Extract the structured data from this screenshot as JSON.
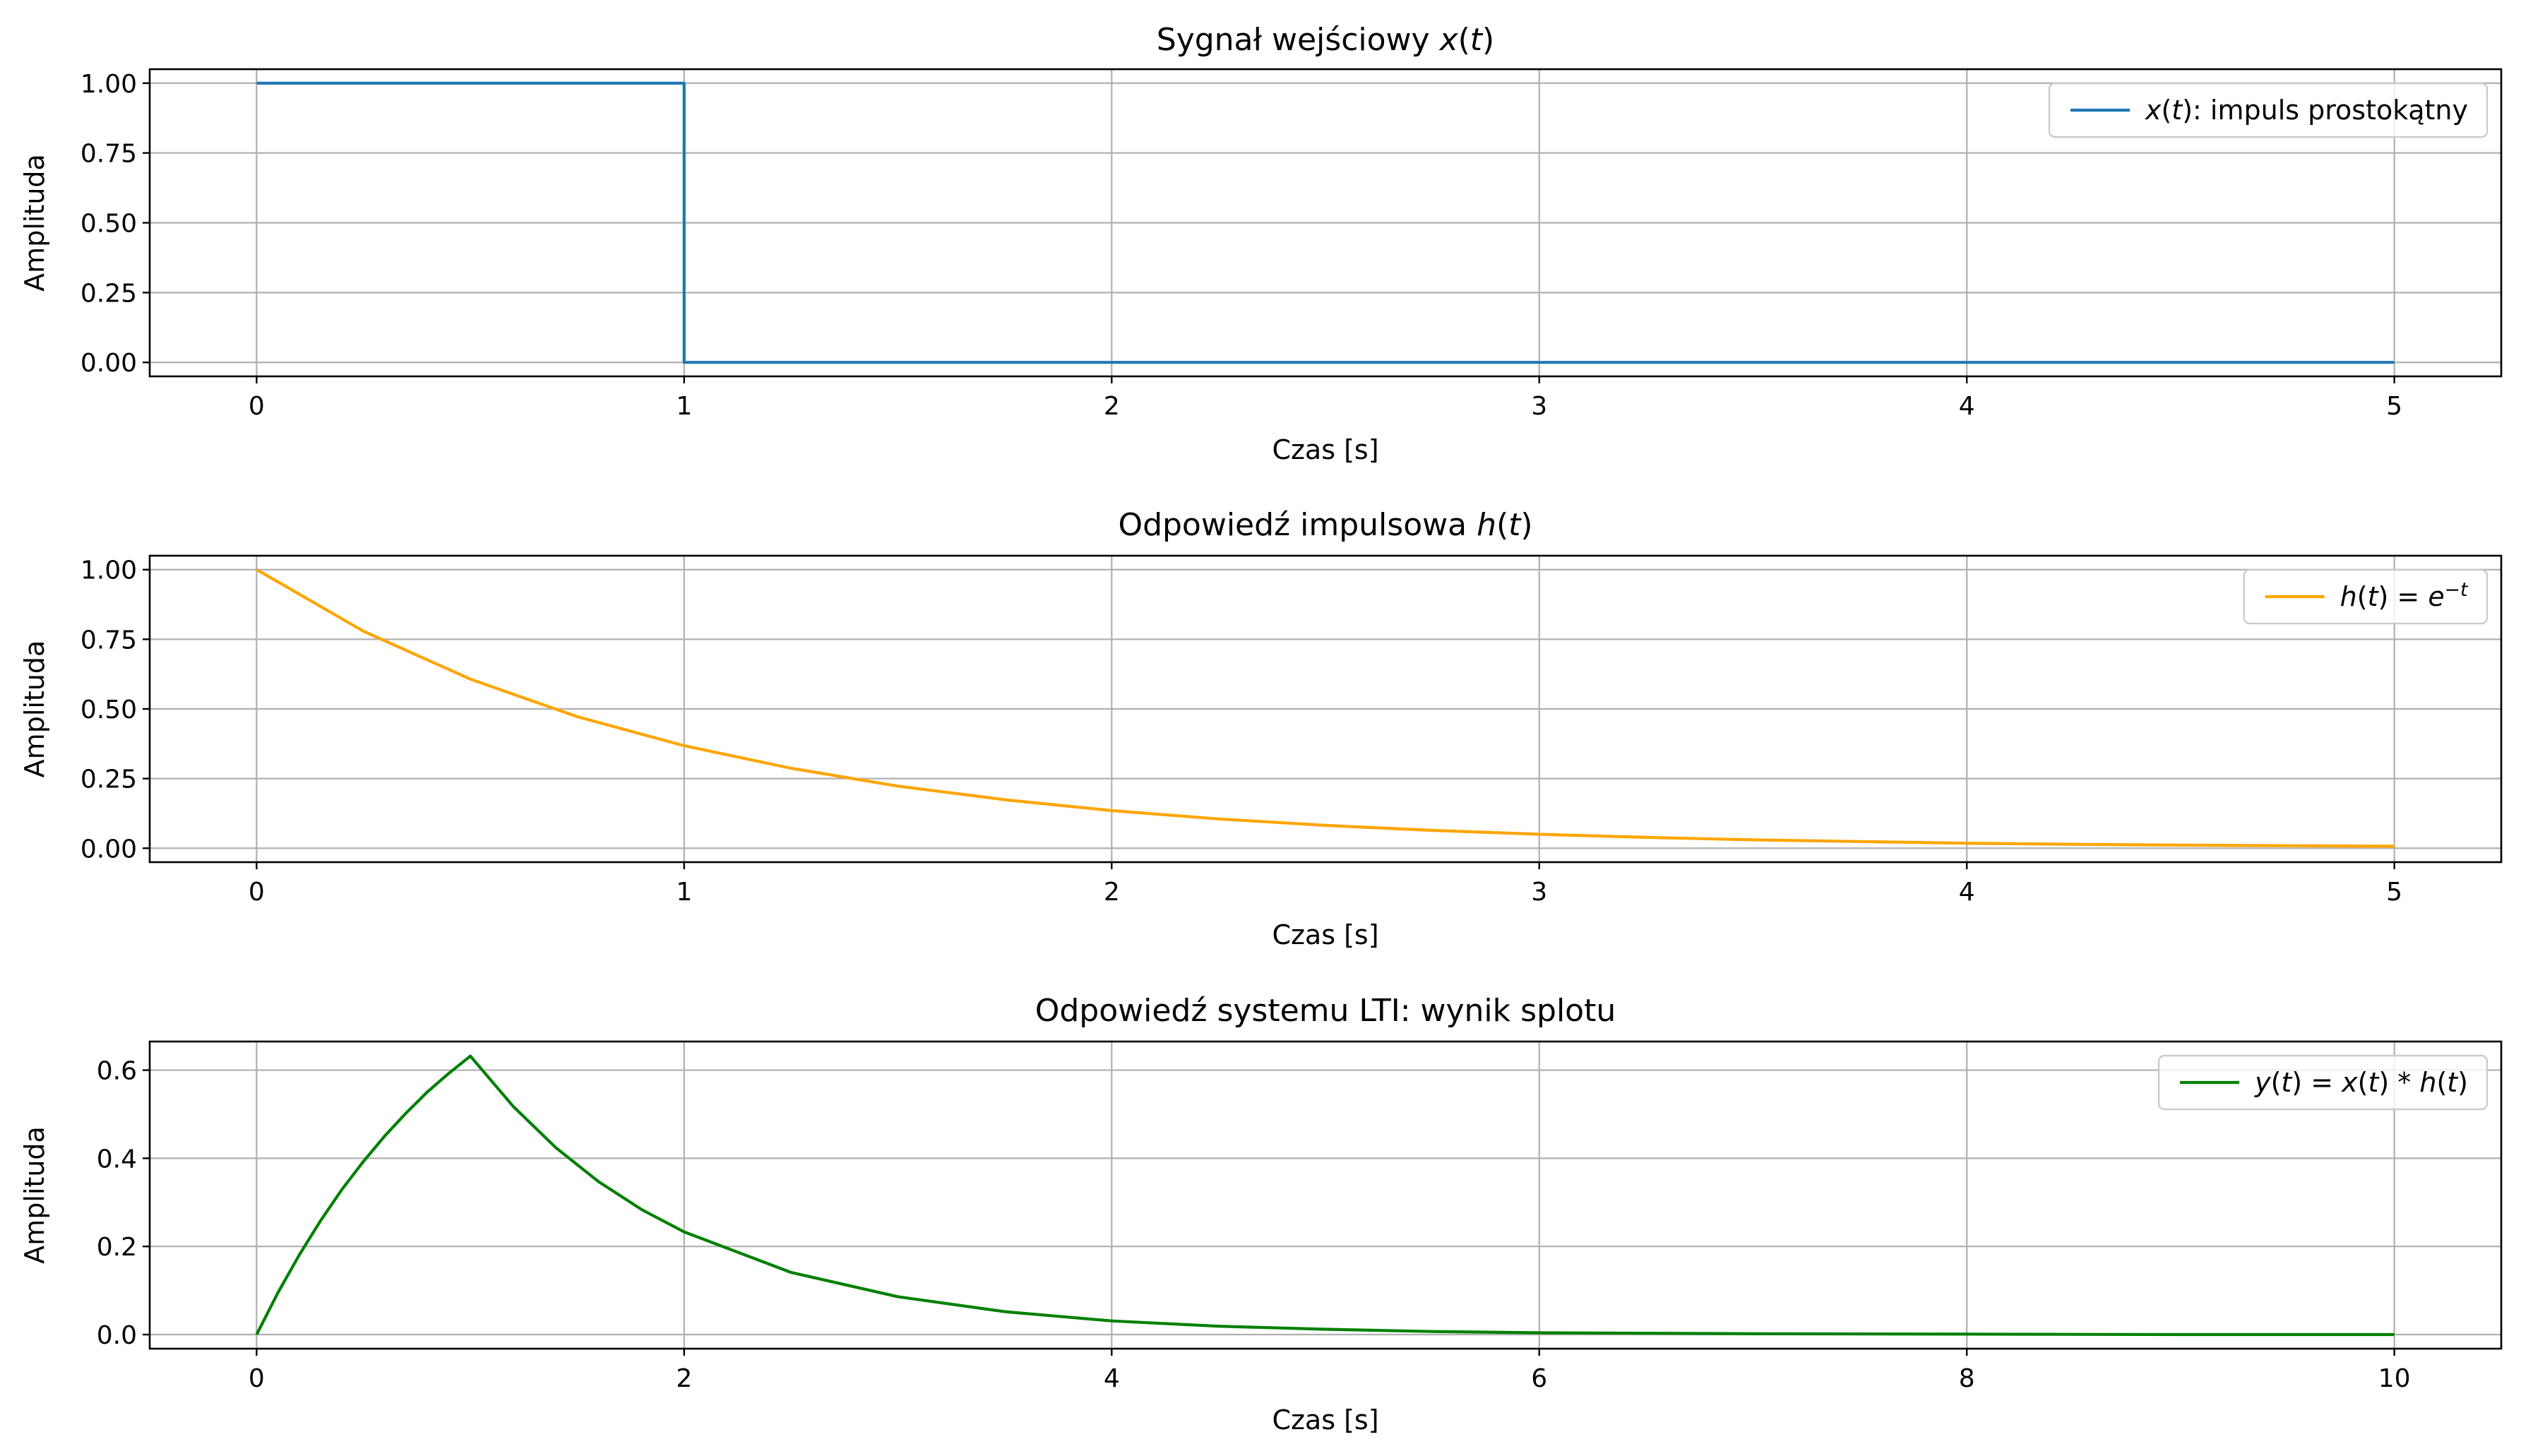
{
  "chart_data": [
    {
      "type": "line",
      "title": "Sygnał wejściowy x(t)",
      "title_parts": [
        {
          "t": "Sygnał wejściowy "
        },
        {
          "t": "x",
          "i": true
        },
        {
          "t": "("
        },
        {
          "t": "t",
          "i": true
        },
        {
          "t": ")"
        }
      ],
      "xlabel": "Czas [s]",
      "ylabel": "Amplituda",
      "xlim": [
        -0.25,
        5.25
      ],
      "ylim": [
        -0.05,
        1.05
      ],
      "xticks": [
        0,
        1,
        2,
        3,
        4,
        5
      ],
      "xtick_labels": [
        "0",
        "1",
        "2",
        "3",
        "4",
        "5"
      ],
      "yticks": [
        0,
        0.25,
        0.5,
        0.75,
        1.0
      ],
      "ytick_labels": [
        "0.00",
        "0.25",
        "0.50",
        "0.75",
        "1.00"
      ],
      "grid": true,
      "legend_placement": "top-right",
      "series": [
        {
          "name": "x(t): impuls prostokątny",
          "name_parts": [
            {
              "t": "x",
              "i": true
            },
            {
              "t": "("
            },
            {
              "t": "t",
              "i": true
            },
            {
              "t": "): impuls prostokątny"
            }
          ],
          "color": "#1f77b4",
          "x": [
            0,
            1,
            1,
            5
          ],
          "y": [
            1,
            1,
            0,
            0
          ]
        }
      ]
    },
    {
      "type": "line",
      "title": "Odpowiedź impulsowa h(t)",
      "title_parts": [
        {
          "t": "Odpowiedź impulsowa "
        },
        {
          "t": "h",
          "i": true
        },
        {
          "t": "("
        },
        {
          "t": "t",
          "i": true
        },
        {
          "t": ")"
        }
      ],
      "xlabel": "Czas [s]",
      "ylabel": "Amplituda",
      "xlim": [
        -0.25,
        5.25
      ],
      "ylim": [
        -0.05,
        1.05
      ],
      "xticks": [
        0,
        1,
        2,
        3,
        4,
        5
      ],
      "xtick_labels": [
        "0",
        "1",
        "2",
        "3",
        "4",
        "5"
      ],
      "yticks": [
        0,
        0.25,
        0.5,
        0.75,
        1.0
      ],
      "ytick_labels": [
        "0.00",
        "0.25",
        "0.50",
        "0.75",
        "1.00"
      ],
      "grid": true,
      "legend_placement": "top-right",
      "series": [
        {
          "name": "h(t) = e^-t",
          "name_parts": [
            {
              "t": "h",
              "i": true
            },
            {
              "t": "("
            },
            {
              "t": "t",
              "i": true
            },
            {
              "t": ") = "
            },
            {
              "t": "e",
              "i": true
            },
            {
              "t": "−",
              "sup": true
            },
            {
              "t": "t",
              "i": true,
              "sup": true
            }
          ],
          "color": "#ffa500",
          "x": [
            0,
            0.25,
            0.5,
            0.75,
            1,
            1.25,
            1.5,
            1.75,
            2,
            2.25,
            2.5,
            2.75,
            3,
            3.25,
            3.5,
            3.75,
            4,
            4.25,
            4.5,
            4.75,
            5
          ],
          "y": [
            1.0,
            0.779,
            0.607,
            0.472,
            0.368,
            0.287,
            0.223,
            0.174,
            0.135,
            0.105,
            0.082,
            0.064,
            0.05,
            0.039,
            0.03,
            0.024,
            0.018,
            0.014,
            0.011,
            0.009,
            0.007
          ]
        }
      ]
    },
    {
      "type": "line",
      "title": "Odpowiedź systemu LTI: wynik splotu",
      "title_parts": [
        {
          "t": "Odpowiedź systemu LTI: wynik splotu"
        }
      ],
      "xlabel": "Czas [s]",
      "ylabel": "Amplituda",
      "xlim": [
        -0.5,
        10.5
      ],
      "ylim": [
        -0.032,
        0.665
      ],
      "xticks": [
        0,
        2,
        4,
        6,
        8,
        10
      ],
      "xtick_labels": [
        "0",
        "2",
        "4",
        "6",
        "8",
        "10"
      ],
      "yticks": [
        0,
        0.2,
        0.4,
        0.6
      ],
      "ytick_labels": [
        "0.0",
        "0.2",
        "0.4",
        "0.6"
      ],
      "grid": true,
      "legend_placement": "top-right",
      "series": [
        {
          "name": "y(t) = x(t) * h(t)",
          "name_parts": [
            {
              "t": "y",
              "i": true
            },
            {
              "t": "("
            },
            {
              "t": "t",
              "i": true
            },
            {
              "t": ") = "
            },
            {
              "t": "x",
              "i": true
            },
            {
              "t": "("
            },
            {
              "t": "t",
              "i": true
            },
            {
              "t": ") * "
            },
            {
              "t": "h",
              "i": true
            },
            {
              "t": "("
            },
            {
              "t": "t",
              "i": true
            },
            {
              "t": ")"
            }
          ],
          "color": "#008000",
          "x": [
            0,
            0.1,
            0.2,
            0.3,
            0.4,
            0.5,
            0.6,
            0.7,
            0.8,
            0.9,
            1.0,
            1.2,
            1.4,
            1.6,
            1.8,
            2.0,
            2.5,
            3.0,
            3.5,
            4.0,
            4.5,
            5.0,
            5.5,
            6.0,
            7.0,
            8.0,
            9.0,
            10.0
          ],
          "y": [
            0.0,
            0.095,
            0.181,
            0.259,
            0.33,
            0.393,
            0.451,
            0.503,
            0.551,
            0.593,
            0.632,
            0.518,
            0.424,
            0.347,
            0.284,
            0.233,
            0.141,
            0.086,
            0.052,
            0.031,
            0.019,
            0.012,
            0.007,
            0.004,
            0.002,
            0.001,
            0.0,
            0.0
          ]
        }
      ]
    }
  ]
}
